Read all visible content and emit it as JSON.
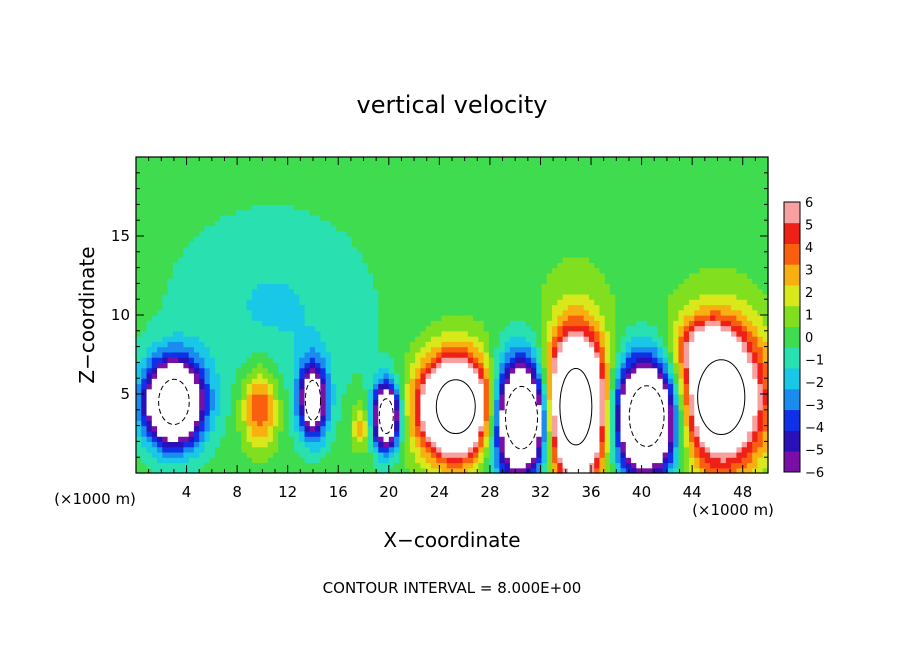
{
  "chart_data": {
    "type": "heatmap",
    "title": "vertical velocity",
    "xlabel": "X−coordinate",
    "ylabel": "Z−coordinate",
    "x_unit_left": "(×1000 m)",
    "x_unit_right": "(×1000 m)",
    "xlim": [
      0,
      50
    ],
    "ylim": [
      0,
      20
    ],
    "xticks": [
      4,
      8,
      12,
      16,
      20,
      24,
      28,
      32,
      36,
      40,
      44,
      48
    ],
    "yticks": [
      5,
      10,
      15
    ],
    "footer": "CONTOUR INTERVAL =  8.000E+00",
    "colorbar": {
      "min": -6,
      "max": 6,
      "ticks": [
        6,
        5,
        4,
        3,
        2,
        1,
        0,
        -1,
        -2,
        -3,
        -4,
        -5,
        -6
      ],
      "colors": [
        "#7a0fa8",
        "#2a10b8",
        "#1030e8",
        "#1a8cf0",
        "#18c8e6",
        "#28e0b0",
        "#40dc50",
        "#80e020",
        "#d8e81a",
        "#f8b010",
        "#f86010",
        "#ee2018",
        "#f8a0a0"
      ]
    },
    "cells": [
      {
        "x": 3,
        "z": 4.5,
        "rx": 2.2,
        "rz": 2.6,
        "w": -14
      },
      {
        "x": 9.8,
        "z": 4.2,
        "rx": 1.4,
        "rz": 2.5,
        "w": 4.5
      },
      {
        "x": 14,
        "z": 4.6,
        "rx": 1.1,
        "rz": 2.3,
        "w": -9
      },
      {
        "x": 17.8,
        "z": 3,
        "rx": 0.7,
        "rz": 1.4,
        "w": 3
      },
      {
        "x": 19.8,
        "z": 3.6,
        "rx": 1,
        "rz": 2,
        "w": -12
      },
      {
        "x": 25.3,
        "z": 4.2,
        "rx": 2.8,
        "rz": 3.1,
        "w": 15
      },
      {
        "x": 30.5,
        "z": 3.5,
        "rx": 2.3,
        "rz": 3.6,
        "w": -14
      },
      {
        "x": 34.8,
        "z": 4.2,
        "rx": 2.3,
        "rz": 4.4,
        "w": 17
      },
      {
        "x": 40.4,
        "z": 3.6,
        "rx": 2.5,
        "rz": 3.5,
        "w": -15
      },
      {
        "x": 46.3,
        "z": 4.8,
        "rx": 3.4,
        "rz": 4.3,
        "w": 12
      },
      {
        "x": 45,
        "z": 8,
        "rx": 2.2,
        "rz": 1.8,
        "w": 3.5
      },
      {
        "x": 11,
        "z": 10.5,
        "rx": 8,
        "rz": 6,
        "w": -1.5
      },
      {
        "x": 35,
        "z": 14,
        "rx": 14,
        "rz": 6,
        "w": 0.3
      }
    ]
  }
}
